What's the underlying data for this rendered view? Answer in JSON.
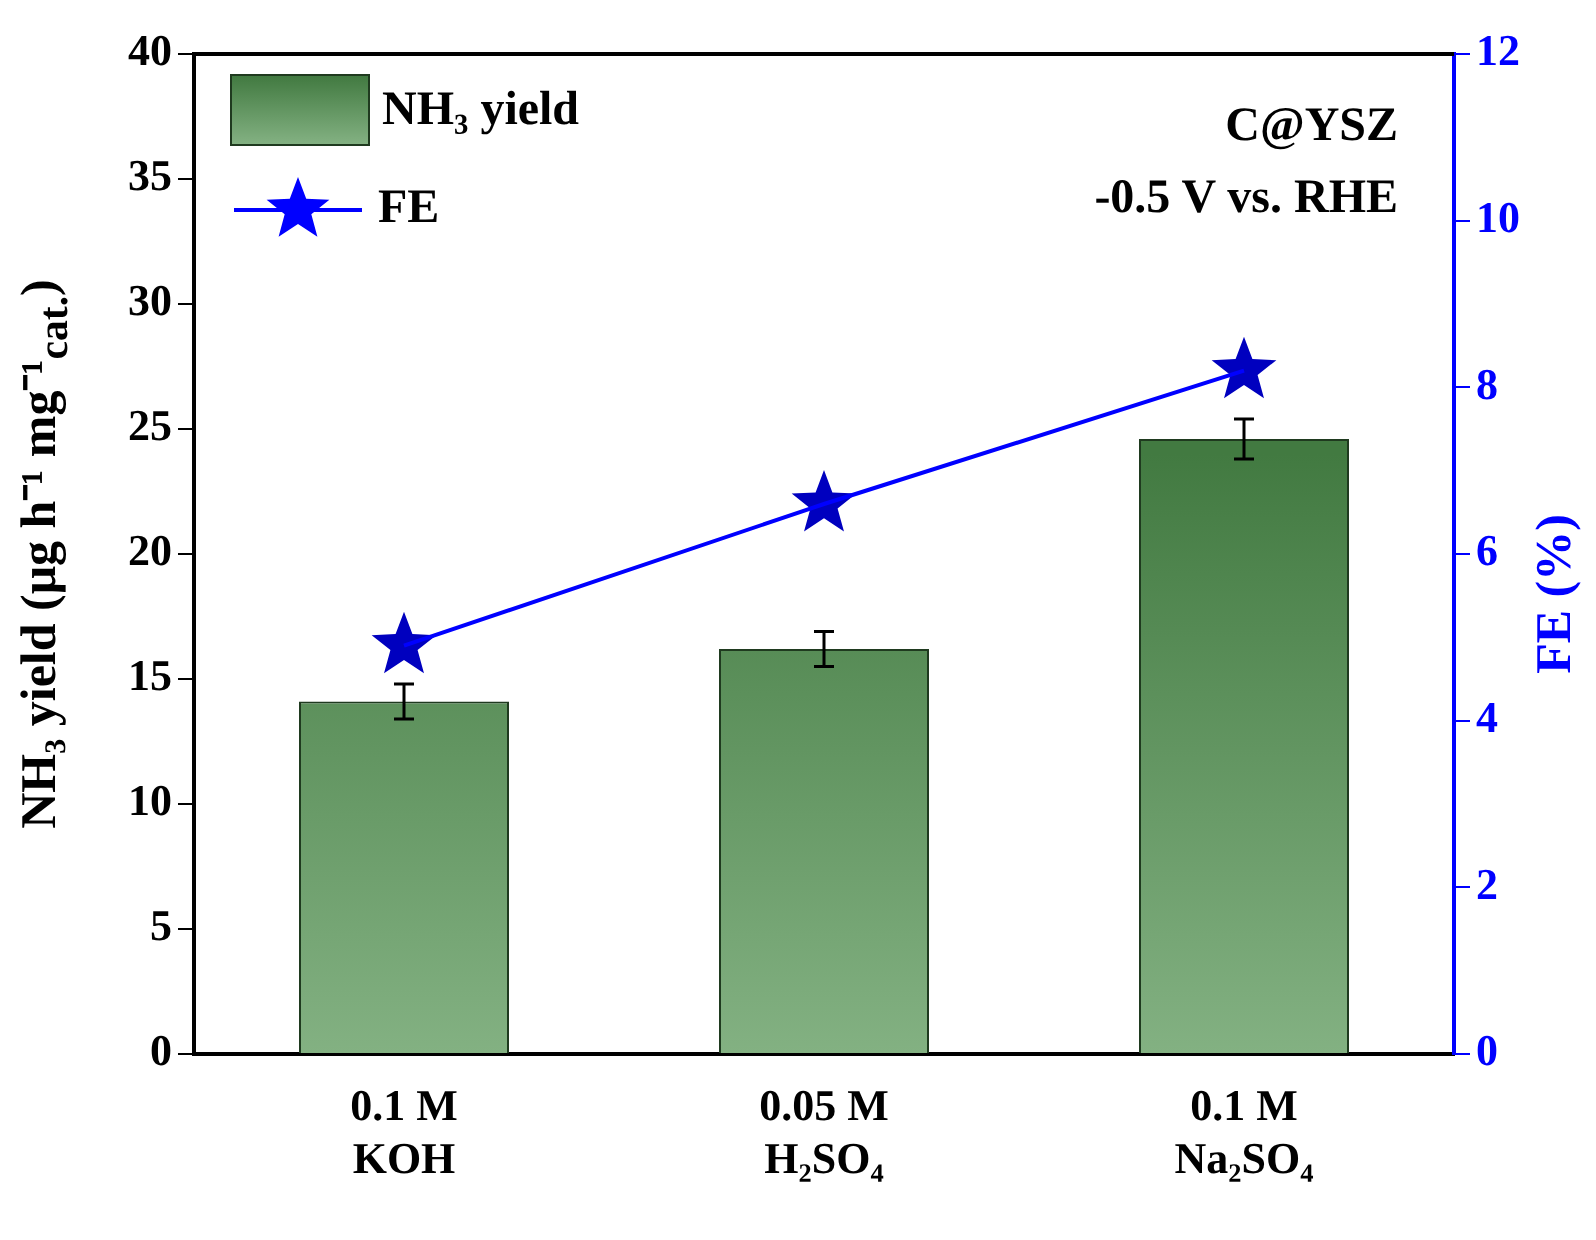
{
  "chart_data": {
    "type": "bar",
    "categories": [
      "0.1 M KOH",
      "0.05 M H₂SO₄",
      "0.1 M Na₂SO₄"
    ],
    "series": [
      {
        "name": "NH₃ yield",
        "color": "#4e8f4c",
        "values": [
          14.1,
          16.2,
          24.6
        ],
        "errors": [
          0.7,
          0.7,
          0.8
        ]
      },
      {
        "name": "FE",
        "type": "line",
        "axis": "y2",
        "color": "#0000ff",
        "values": [
          4.9,
          6.6,
          8.2
        ],
        "marker": "star",
        "line_style": "solid"
      }
    ],
    "ylabel": "NH₃ yield (μg h⁻¹ mg⁻¹$_{cat.}$)",
    "y2label": "FE (%)",
    "ylim": [
      0,
      40
    ],
    "yticks": [
      0,
      5,
      10,
      15,
      20,
      25,
      30,
      35,
      40
    ],
    "y2lim": [
      0,
      12
    ],
    "y2ticks": [
      0,
      2,
      4,
      6,
      8,
      10,
      12
    ],
    "annotations": [
      "C@YSZ",
      "-0.5 V vs. RHE"
    ],
    "legend": "top left",
    "grid": false
  }
}
